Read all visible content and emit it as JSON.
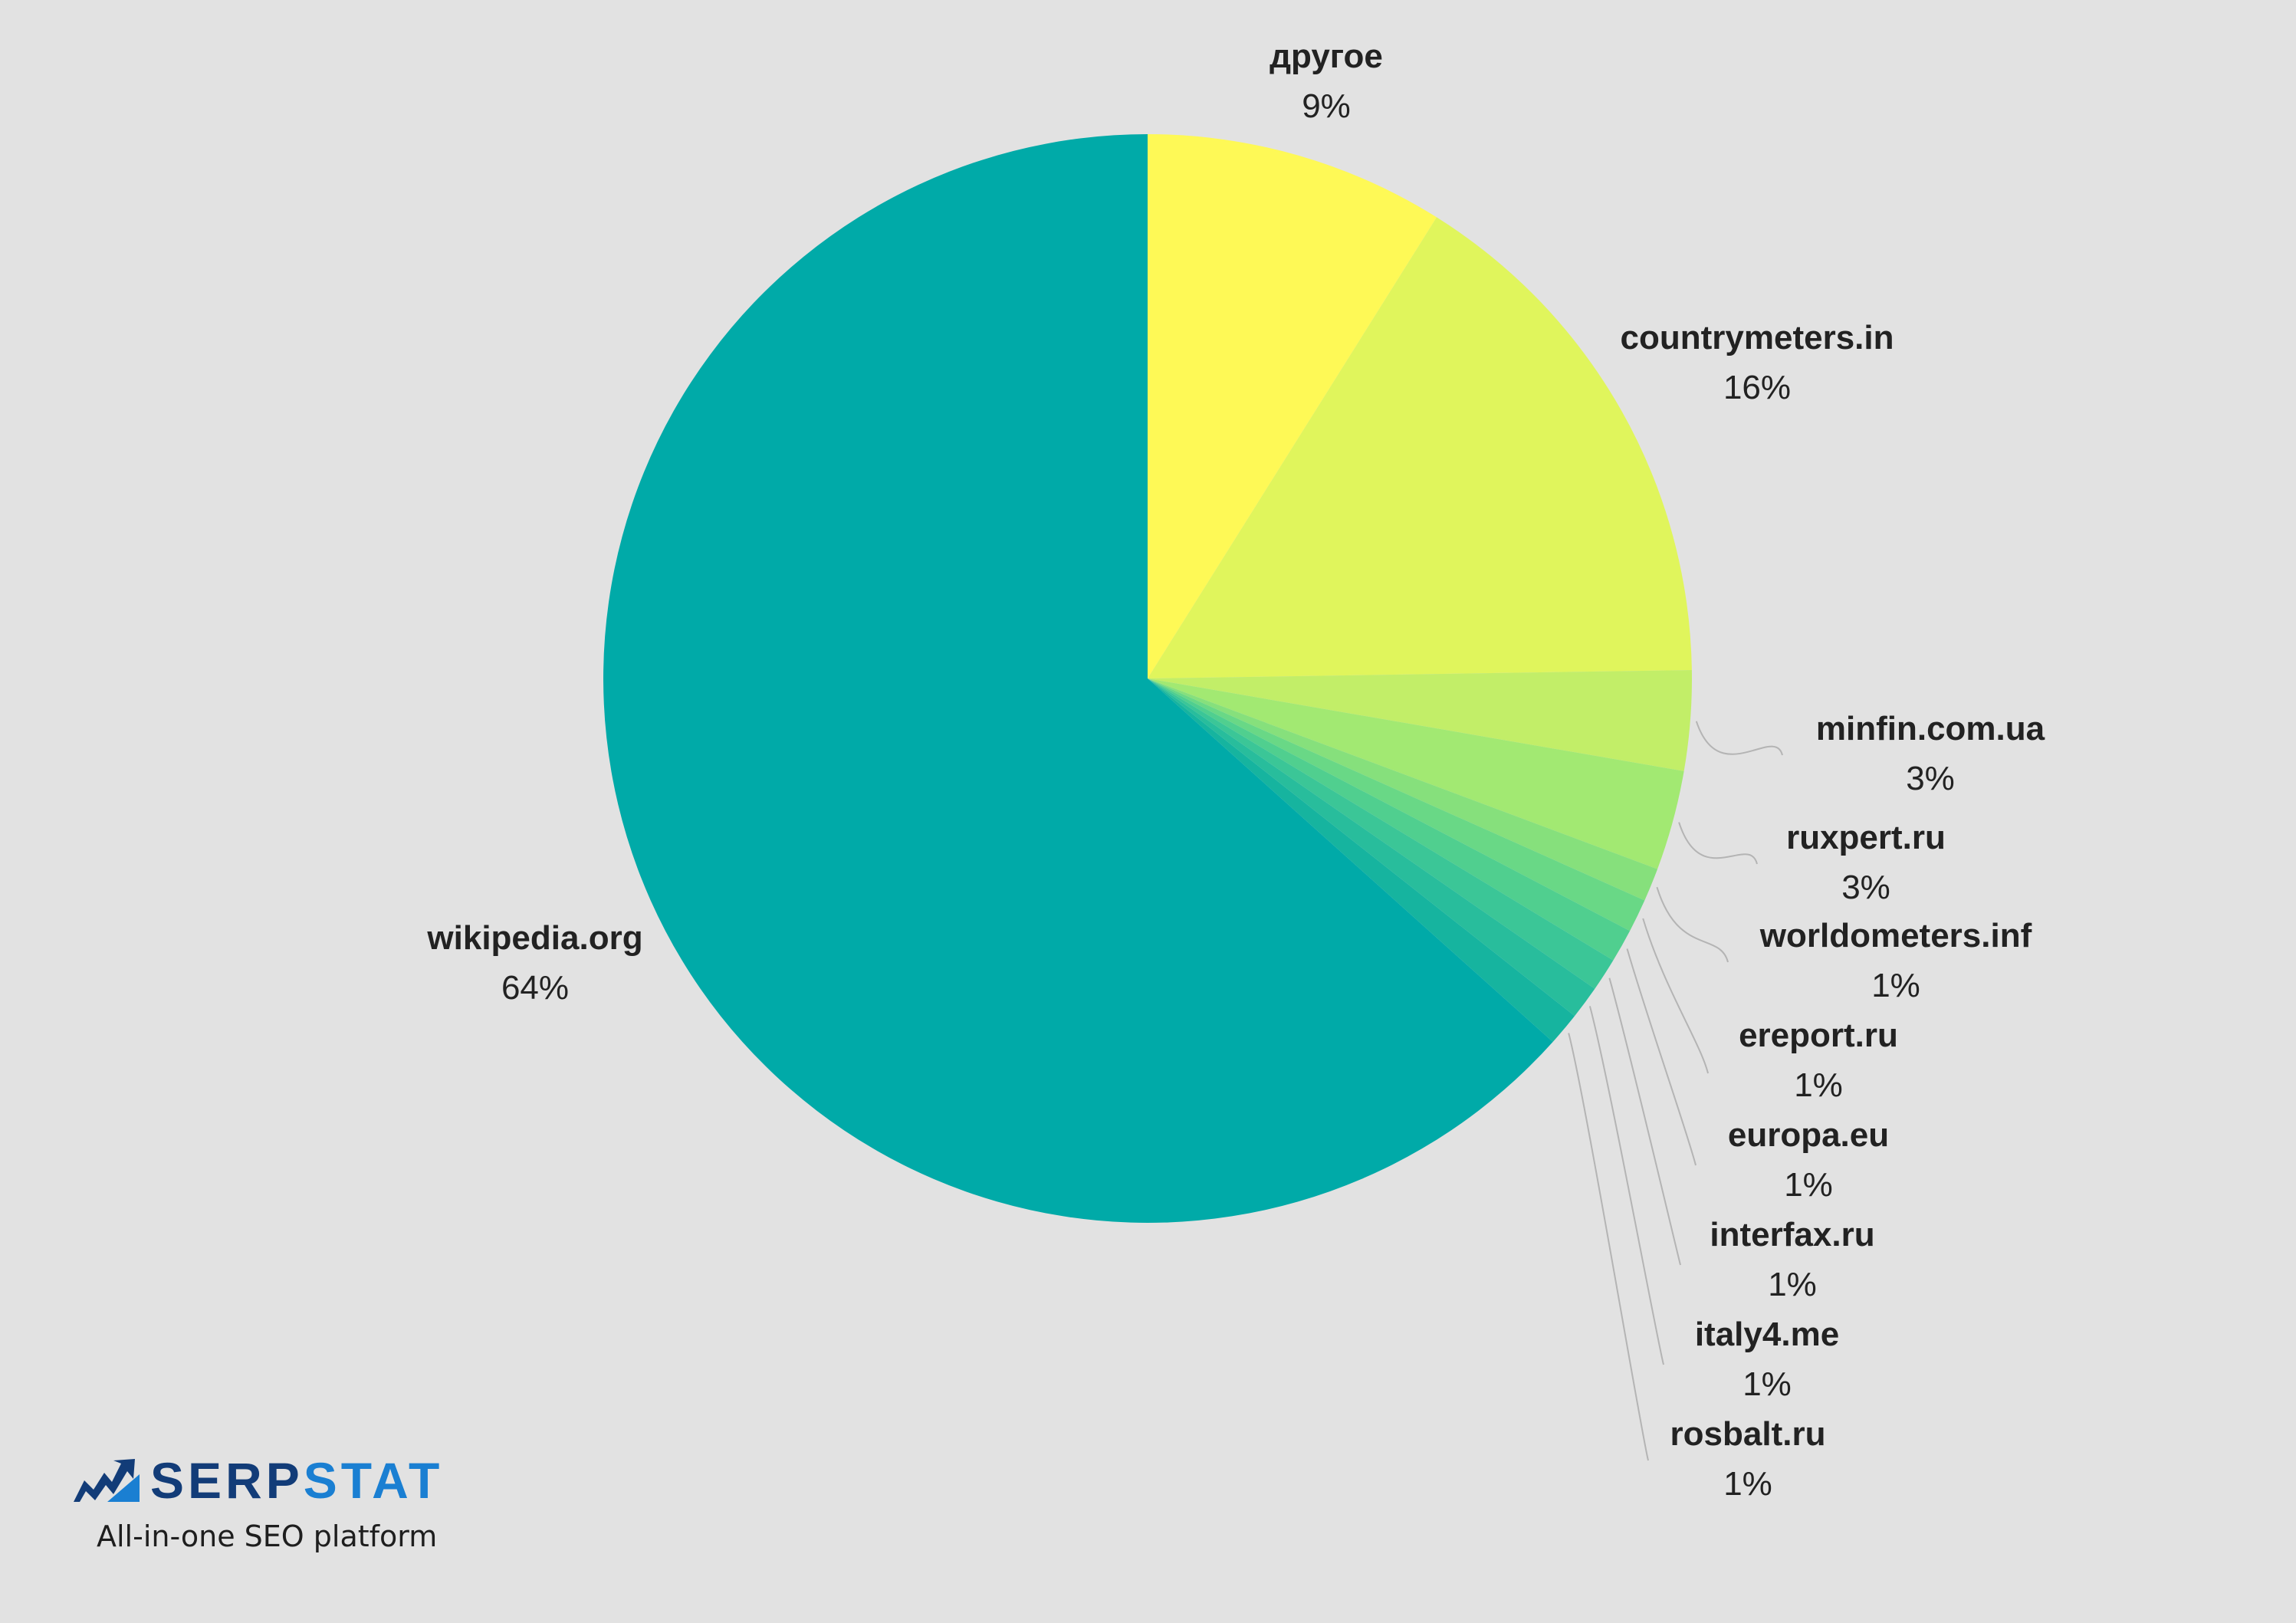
{
  "chart_data": {
    "type": "pie",
    "title": "",
    "slices": [
      {
        "label": "другое",
        "value": 9,
        "value_label": "9%",
        "color": "#fef956"
      },
      {
        "label": "countrymeters.in",
        "value": 16,
        "value_label": "16%",
        "color": "#e0f55c"
      },
      {
        "label": "minfin.com.ua",
        "value": 3,
        "value_label": "3%",
        "color": "#c2ee68"
      },
      {
        "label": "ruxpert.ru",
        "value": 3,
        "value_label": "3%",
        "color": "#a2e972"
      },
      {
        "label": "worldometers.inf",
        "value": 1,
        "value_label": "1%",
        "color": "#86e07c"
      },
      {
        "label": "ereport.ru",
        "value": 1,
        "value_label": "1%",
        "color": "#69d886"
      },
      {
        "label": "europa.eu",
        "value": 1,
        "value_label": "1%",
        "color": "#50cf8f"
      },
      {
        "label": "interfax.ru",
        "value": 1,
        "value_label": "1%",
        "color": "#3bc697"
      },
      {
        "label": "italy4.me",
        "value": 1,
        "value_label": "1%",
        "color": "#28bd9c"
      },
      {
        "label": "rosbalt.ru",
        "value": 1,
        "value_label": "1%",
        "color": "#16b49f"
      },
      {
        "label": "wikipedia.org",
        "value": 64,
        "value_label": "64%",
        "color": "#00aaa8"
      }
    ]
  },
  "branding": {
    "logo_part1": "SERP",
    "logo_part2": "STAT",
    "tagline": "All-in-one SEO platform",
    "logo_icon": "serpstat-chart-arrow-icon",
    "colors": {
      "dark": "#123c78",
      "light": "#1a7fd2"
    }
  }
}
